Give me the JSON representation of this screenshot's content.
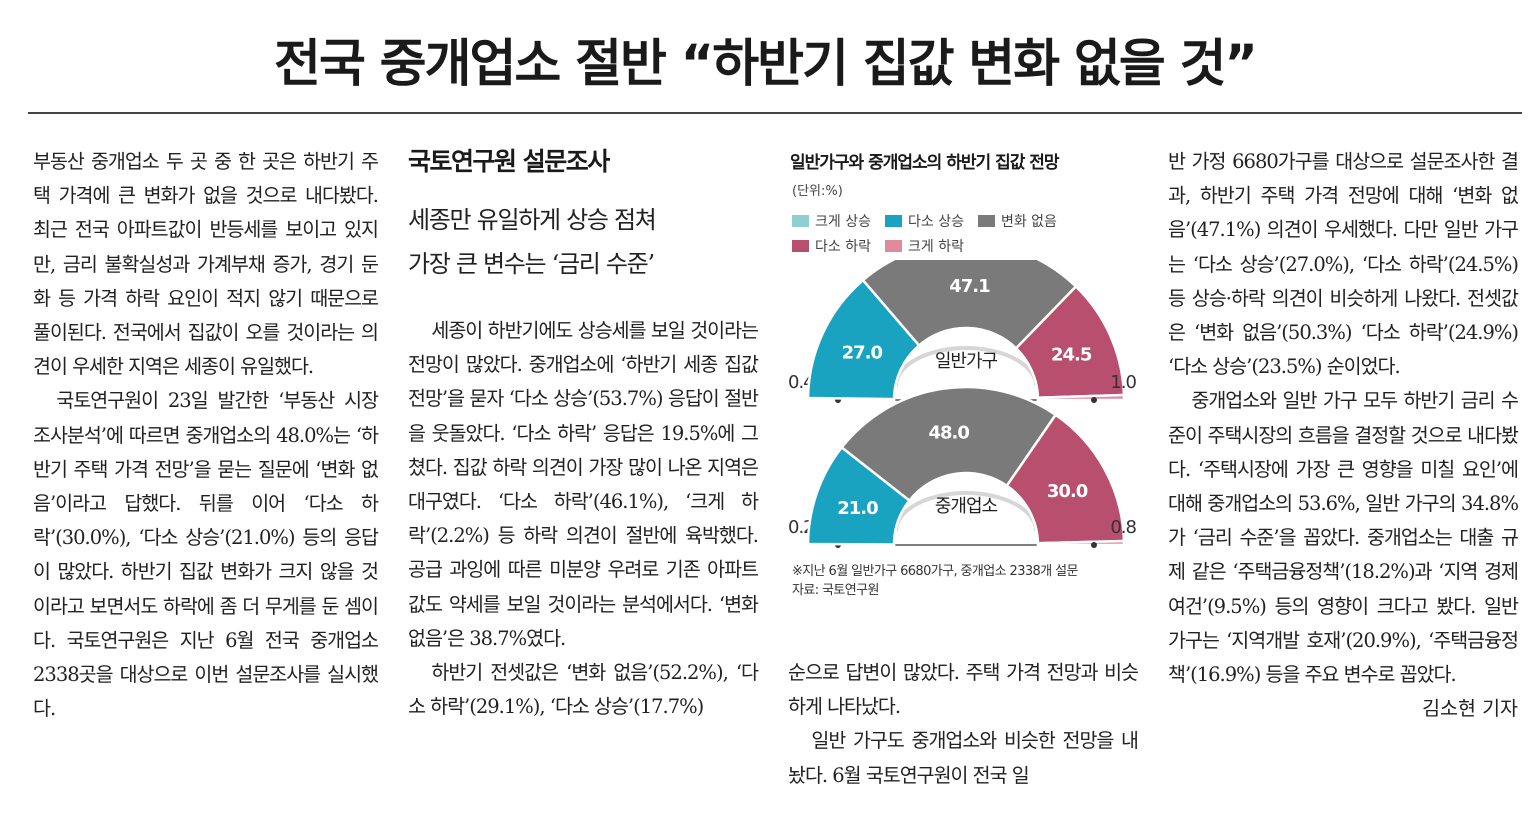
{
  "headline": "전국 중개업소 절반 “하반기 집값 변화 없을 것”",
  "subheads": {
    "main": "국토연구원 설문조사",
    "line1": "세종만 유일하게 상승 점쳐",
    "line2": "가장 큰 변수는 ‘금리 수준’"
  },
  "col1": {
    "p1": "부동산 중개업소 두 곳 중 한 곳은 하반기 주택 가격에 큰 변화가 없을 것으로 내다봤다. 최근 전국 아파트값이 반등세를 보이고 있지만, 금리 불확실성과 가계부채 증가, 경기 둔화 등 가격 하락 요인이 적지 않기 때문으로 풀이된다. 전국에서 집값이 오를 것이라는 의견이 우세한 지역은 세종이 유일했다.",
    "p2": "국토연구원이 23일 발간한 ‘부동산 시장 조사분석’에 따르면 중개업소의 48.0%는 ‘하반기 주택 가격 전망’을 묻는 질문에 ‘변화 없음’이라고 답했다. 뒤를 이어 ‘다소 하락’(30.0%), ‘다소 상승’(21.0%) 등의 응답이 많았다. 하반기 집값 변화가 크지 않을 것이라고 보면서도 하락에 좀 더 무게를 둔 셈이다. 국토연구원은 지난 6월 전국 중개업소 2338곳을 대상으로 이번 설문조사를 실시했다."
  },
  "col2": {
    "p1": "세종이 하반기에도 상승세를 보일 것이라는 전망이 많았다. 중개업소에 ‘하반기 세종 집값 전망’을 묻자 ‘다소 상승’(53.7%) 응답이 절반을 웃돌았다. ‘다소 하락’ 응답은 19.5%에 그쳤다. 집값 하락 의견이 가장 많이 나온 지역은 대구였다. ‘다소 하락’(46.1%), ‘크게 하락’(2.2%) 등 하락 의견이 절반에 육박했다. 공급 과잉에 따른 미분양 우려로 기존 아파트값도 약세를 보일 것이라는 분석에서다. ‘변화 없음’은 38.7%였다.",
    "p2": "하반기 전셋값은 ‘변화 없음’(52.2%), ‘다소 하락’(29.1%), ‘다소 상승’(17.7%)"
  },
  "col3": {
    "p1": "순으로 답변이 많았다. 주택 가격 전망과 비슷하게 나타났다.",
    "p2": "일반 가구도 중개업소와 비슷한 전망을 내놨다. 6월 국토연구원이 전국 일"
  },
  "col4": {
    "p1": "반 가정 6680가구를 대상으로 설문조사한 결과, 하반기 주택 가격 전망에 대해 ‘변화 없음’(47.1%) 의견이 우세했다. 다만 일반 가구는 ‘다소 상승’(27.0%), ‘다소 하락’(24.5%) 등 상승·하락 의견이 비슷하게 나왔다. 전셋값은 ‘변화 없음’(50.3%) ‘다소 하락’(24.9%) ‘다소 상승’(23.5%) 순이었다.",
    "p2": "중개업소와 일반 가구 모두 하반기 금리 수준이 주택시장의 흐름을 결정할 것으로 내다봤다. ‘주택시장에 가장 큰 영향을 미칠 요인’에 대해 중개업소의 53.6%, 일반 가구의 34.8%가 ‘금리 수준’을 꼽았다. 중개업소는 대출 규제 같은 ‘주택금융정책’(18.2%)과 ‘지역 경제 여건’(9.5%) 등의 영향이 크다고 봤다. 일반 가구는 ‘지역개발 호재’(20.9%), ‘주택금융정책’(16.9%) 등을 주요 변수로 꼽았다.",
    "byline": "김소현 기자"
  },
  "chart_data": {
    "type": "pie",
    "title": "일반가구와 중개업소의 하반기 집값 전망",
    "unit": "(단위:%)",
    "categories": [
      "크게 상승",
      "다소 상승",
      "변화 없음",
      "다소 하락",
      "크게 하락"
    ],
    "colors": [
      "#8fcfd1",
      "#1aa3c0",
      "#7a7a7a",
      "#b94f6f",
      "#e08a9e"
    ],
    "series": [
      {
        "name": "일반가구",
        "values": [
          0.4,
          27.0,
          47.1,
          24.5,
          1.0
        ]
      },
      {
        "name": "중개업소",
        "values": [
          0.2,
          21.0,
          48.0,
          30.0,
          0.8
        ]
      }
    ],
    "note": "※지난 6월 일반가구 6680가구, 중개업소 2338개 설문",
    "source": "자료: 국토연구원"
  }
}
